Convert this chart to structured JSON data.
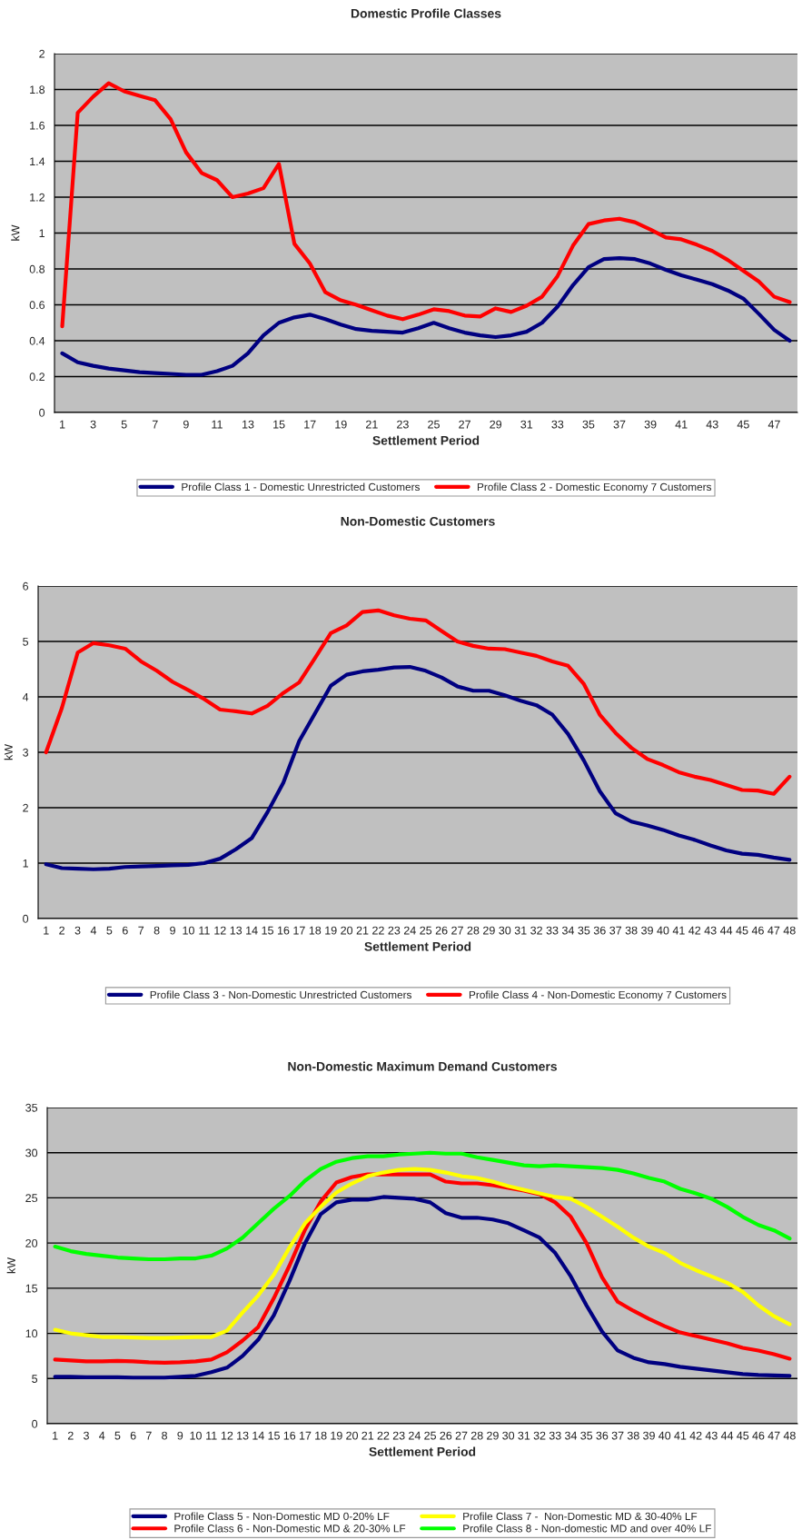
{
  "chart_data": [
    {
      "type": "line",
      "title": "Domestic Profile Classes",
      "xlabel": "Settlement Period",
      "ylabel": "kW",
      "categories": [
        "1",
        null,
        "3",
        null,
        "5",
        null,
        "7",
        null,
        "9",
        null,
        "11",
        null,
        "13",
        null,
        "15",
        null,
        "17",
        null,
        "19",
        null,
        "21",
        null,
        "23",
        null,
        "25",
        null,
        "27",
        null,
        "29",
        null,
        "31",
        null,
        "33",
        null,
        "35",
        null,
        "37",
        null,
        "39",
        null,
        "41",
        null,
        "43",
        null,
        "45",
        null,
        "47",
        null
      ],
      "ylim": [
        0,
        2
      ],
      "yticks": [
        0,
        0.2,
        0.4,
        0.6,
        0.8,
        1,
        1.2,
        1.4,
        1.6,
        1.8,
        2
      ],
      "grid": "y",
      "legend": "bottom",
      "series": [
        {
          "name": "Profile Class 1 - Domestic Unrestricted Customers",
          "color": "#000080",
          "values": [
            0.33,
            0.28,
            0.26,
            0.245,
            0.235,
            0.225,
            0.22,
            0.215,
            0.21,
            0.21,
            0.23,
            0.26,
            0.33,
            0.43,
            0.5,
            0.53,
            0.545,
            0.52,
            0.49,
            0.465,
            0.455,
            0.45,
            0.445,
            0.47,
            0.5,
            0.47,
            0.445,
            0.43,
            0.42,
            0.43,
            0.45,
            0.5,
            0.59,
            0.71,
            0.81,
            0.855,
            0.86,
            0.855,
            0.83,
            0.795,
            0.765,
            0.74,
            0.715,
            0.68,
            0.635,
            0.55,
            0.46,
            0.4
          ]
        },
        {
          "name": "Profile Class 2 - Domestic Economy 7 Customers",
          "color": "#ff0000",
          "values": [
            0.48,
            1.67,
            1.76,
            1.835,
            1.79,
            1.765,
            1.74,
            1.635,
            1.45,
            1.335,
            1.295,
            1.2,
            1.22,
            1.25,
            1.385,
            0.94,
            0.83,
            0.67,
            0.625,
            0.6,
            0.57,
            0.54,
            0.52,
            0.545,
            0.575,
            0.565,
            0.54,
            0.535,
            0.58,
            0.56,
            0.595,
            0.645,
            0.76,
            0.93,
            1.05,
            1.07,
            1.08,
            1.06,
            1.02,
            0.975,
            0.965,
            0.935,
            0.9,
            0.85,
            0.79,
            0.73,
            0.645,
            0.615
          ]
        }
      ]
    },
    {
      "type": "line",
      "title": "Non-Domestic Customers",
      "xlabel": "Settlement Period",
      "ylabel": "kW",
      "categories": [
        "1",
        "2",
        "3",
        "4",
        "5",
        "6",
        "7",
        "8",
        "9",
        "10",
        "11",
        "12",
        "13",
        "14",
        "15",
        "16",
        "17",
        "18",
        "19",
        "20",
        "21",
        "22",
        "23",
        "24",
        "25",
        "26",
        "27",
        "28",
        "29",
        "30",
        "31",
        "32",
        "33",
        "34",
        "35",
        "36",
        "37",
        "38",
        "39",
        "40",
        "41",
        "42",
        "43",
        "44",
        "45",
        "46",
        "47",
        "48"
      ],
      "ylim": [
        0,
        6
      ],
      "yticks": [
        0,
        1,
        2,
        3,
        4,
        5,
        6
      ],
      "grid": "y",
      "legend": "bottom",
      "series": [
        {
          "name": "Profile Class 3 - Non-Domestic Unrestricted Customers",
          "color": "#000080",
          "values": [
            0.98,
            0.91,
            0.9,
            0.89,
            0.9,
            0.93,
            0.94,
            0.95,
            0.96,
            0.97,
            1.0,
            1.08,
            1.25,
            1.45,
            1.92,
            2.45,
            3.2,
            3.7,
            4.2,
            4.4,
            4.46,
            4.49,
            4.53,
            4.54,
            4.47,
            4.35,
            4.19,
            4.11,
            4.11,
            4.03,
            3.93,
            3.85,
            3.68,
            3.33,
            2.85,
            2.3,
            1.9,
            1.75,
            1.68,
            1.6,
            1.5,
            1.42,
            1.32,
            1.23,
            1.17,
            1.15,
            1.1,
            1.06
          ]
        },
        {
          "name": "Profile Class 4 - Non-Domestic Economy 7 Customers",
          "color": "#ff0000",
          "values": [
            3.0,
            3.8,
            4.8,
            4.97,
            4.93,
            4.87,
            4.64,
            4.47,
            4.27,
            4.12,
            3.96,
            3.77,
            3.74,
            3.7,
            3.84,
            4.07,
            4.26,
            4.7,
            5.15,
            5.29,
            5.53,
            5.56,
            5.47,
            5.41,
            5.38,
            5.19,
            5.0,
            4.92,
            4.87,
            4.86,
            4.8,
            4.74,
            4.64,
            4.56,
            4.23,
            3.68,
            3.35,
            3.08,
            2.88,
            2.77,
            2.64,
            2.56,
            2.5,
            2.41,
            2.32,
            2.31,
            2.25,
            2.56
          ]
        }
      ]
    },
    {
      "type": "line",
      "title": "Non-Domestic Maximum Demand Customers",
      "xlabel": "Settlement Period",
      "ylabel": "kW",
      "categories": [
        "1",
        "2",
        "3",
        "4",
        "5",
        "6",
        "7",
        "8",
        "9",
        "10",
        "11",
        "12",
        "13",
        "14",
        "15",
        "16",
        "17",
        "18",
        "19",
        "20",
        "21",
        "22",
        "23",
        "24",
        "25",
        "26",
        "27",
        "28",
        "29",
        "30",
        "31",
        "32",
        "33",
        "34",
        "35",
        "36",
        "37",
        "38",
        "39",
        "40",
        "41",
        "42",
        "43",
        "44",
        "45",
        "46",
        "47",
        "48"
      ],
      "ylim": [
        0,
        35
      ],
      "yticks": [
        0,
        5,
        10,
        15,
        20,
        25,
        30,
        35
      ],
      "grid": "y",
      "legend": "bottom",
      "series": [
        {
          "name": "Profile Class 5 - Non-Domestic MD 0-20% LF",
          "color": "#000080",
          "values": [
            5.2,
            5.2,
            5.15,
            5.15,
            5.15,
            5.1,
            5.1,
            5.1,
            5.2,
            5.3,
            5.7,
            6.2,
            7.5,
            9.3,
            12.0,
            15.8,
            20.0,
            23.2,
            24.5,
            24.8,
            24.8,
            25.1,
            25.0,
            24.9,
            24.5,
            23.3,
            22.8,
            22.8,
            22.6,
            22.2,
            21.4,
            20.6,
            18.9,
            16.3,
            13.1,
            10.2,
            8.1,
            7.3,
            6.8,
            6.6,
            6.3,
            6.1,
            5.9,
            5.7,
            5.5,
            5.4,
            5.35,
            5.3
          ]
        },
        {
          "name": "Profile Class 6 - Non-Domestic MD & 20-30% LF",
          "color": "#ff0000",
          "values": [
            7.1,
            7.0,
            6.9,
            6.9,
            6.95,
            6.9,
            6.8,
            6.75,
            6.8,
            6.9,
            7.1,
            7.9,
            9.2,
            10.7,
            13.9,
            17.5,
            21.5,
            24.6,
            26.7,
            27.3,
            27.6,
            27.6,
            27.6,
            27.6,
            27.6,
            26.8,
            26.6,
            26.6,
            26.4,
            26.1,
            25.8,
            25.4,
            24.5,
            22.9,
            20.0,
            16.2,
            13.5,
            12.5,
            11.6,
            10.8,
            10.1,
            9.7,
            9.3,
            8.9,
            8.4,
            8.1,
            7.7,
            7.2
          ]
        },
        {
          "name": "Profile Class 7 -  Non-Domestic MD & 30-40% LF",
          "color": "#ffff00",
          "values": [
            10.4,
            10.0,
            9.8,
            9.6,
            9.6,
            9.55,
            9.5,
            9.5,
            9.55,
            9.6,
            9.6,
            10.3,
            12.3,
            14.2,
            16.5,
            19.5,
            22.2,
            24.0,
            25.6,
            26.6,
            27.4,
            27.8,
            28.1,
            28.2,
            28.1,
            27.8,
            27.4,
            27.2,
            26.8,
            26.3,
            25.9,
            25.5,
            25.1,
            24.9,
            24.0,
            22.9,
            21.8,
            20.6,
            19.6,
            18.9,
            17.8,
            17.0,
            16.3,
            15.6,
            14.6,
            13.1,
            11.9,
            11.0
          ]
        },
        {
          "name": "Profile Class 8 - Non-domestic MD and over 40% LF",
          "color": "#00ff00",
          "values": [
            19.6,
            19.1,
            18.8,
            18.6,
            18.4,
            18.3,
            18.2,
            18.2,
            18.3,
            18.3,
            18.6,
            19.4,
            20.6,
            22.2,
            23.8,
            25.2,
            26.9,
            28.2,
            29.0,
            29.4,
            29.6,
            29.6,
            29.8,
            29.9,
            30.0,
            29.9,
            29.9,
            29.5,
            29.2,
            28.9,
            28.6,
            28.5,
            28.6,
            28.5,
            28.4,
            28.3,
            28.1,
            27.7,
            27.2,
            26.8,
            26.0,
            25.5,
            24.9,
            24.0,
            22.9,
            22.0,
            21.4,
            20.5
          ]
        }
      ]
    }
  ]
}
